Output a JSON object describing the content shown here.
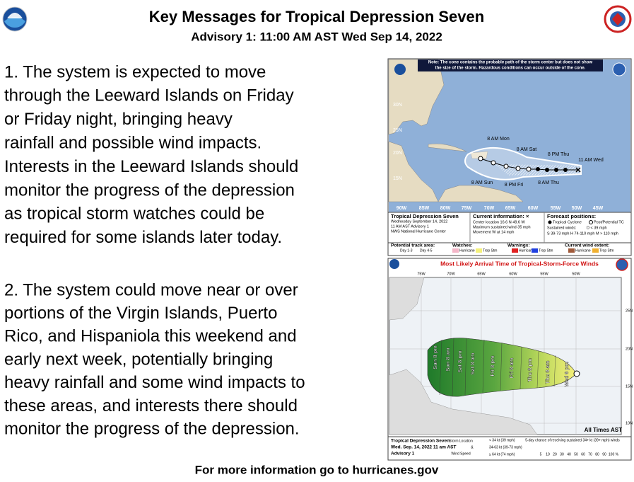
{
  "header": {
    "title": "Key Messages for Tropical Depression Seven",
    "subtitle": "Advisory 1:  11:00 AM AST Wed Sep 14, 2022"
  },
  "messages": [
    {
      "lines": [
        "1. The system is expected to move",
        "through the Leeward Islands on Friday",
        "or Friday night, bringing heavy",
        "rainfall and possible wind impacts.",
        "Interests in the Leeward Islands should",
        "monitor the progress of the depression",
        "as tropical storm watches could be",
        "required for some islands later today."
      ]
    },
    {
      "lines": [
        "2. The system could move near or over",
        "portions of the Virgin Islands, Puerto",
        "Rico, and Hispaniola this weekend and",
        "early next week, potentially bringing",
        "heavy rainfall and some wind impacts to",
        "these areas, and interests there should",
        "monitor the progress of the depression."
      ]
    }
  ],
  "footer": "For more information go to hurricanes.gov",
  "map1": {
    "note": [
      "Note: The cone contains the probable path of the storm center but does not show",
      "the size of the storm. Hazardous conditions can occur outside of the cone."
    ],
    "lat_labels": [
      "30N",
      "25N",
      "20N",
      "15N"
    ],
    "lon_labels": [
      "90W",
      "85W",
      "80W",
      "75W",
      "70W",
      "65W",
      "60W",
      "55W",
      "50W",
      "45W"
    ],
    "track_labels": [
      "8 AM Mon",
      "8 AM Sat",
      "8 PM Thu",
      "11 AM Wed",
      "8 AM Sun",
      "8 PM Fri",
      "8 AM Thu"
    ],
    "storm": [
      "Tropical Depression Seven",
      "Wednesday September 14, 2022",
      "11 AM AST Advisory 1",
      "NWS National Hurricane Center"
    ],
    "current_title": "Current information: ×",
    "current": [
      "Center location 16.6 N 49.6 W",
      "Maximum sustained wind 35 mph",
      "Movement W at 14 mph"
    ],
    "forecast_title": "Forecast positions:",
    "forecast": [
      "Tropical Cyclone",
      "Post/Potential TC",
      "Sustained winds:",
      "D < 39 mph",
      "S 39-73 mph  H 74-110 mph  M > 110 mph"
    ],
    "legend": [
      "Potential track area:",
      "Day 1-3",
      "Day 4-5",
      "Watches:",
      "Hurricane",
      "Trop Stm",
      "Warnings:",
      "Hurricane",
      "Trop Stm",
      "Current wind extent:",
      "Hurricane",
      "Trop Stm"
    ]
  },
  "map2": {
    "title": "Most Likely Arrival Time of Tropical-Storm-Force Winds",
    "lon_labels": [
      "75W",
      "70W",
      "65W",
      "60W",
      "55W",
      "50W"
    ],
    "lat_labels": [
      "25N",
      "20N",
      "15N",
      "10N"
    ],
    "arrivals": [
      "Sun 8 pm",
      "Sun 8 am",
      "Sat 8 pm",
      "Sat 8 am",
      "Fri 8 pm",
      "Fri 8 am",
      "Thu 8 pm",
      "Thu 8 am",
      "Wed 8 pm"
    ],
    "times_note": "All Times AST",
    "info": [
      "Tropical Depression Seven",
      "Wed. Sep. 14, 2022  11 am AST",
      "Advisory 1"
    ],
    "key": [
      "Storm Location",
      "&",
      "Wind Speed",
      "< 34 kt (39 mph)",
      "34-63 kt (39-73 mph)",
      "≥ 64 kt (74 mph)"
    ],
    "scale_title": "5-day chance of receiving sustained 34+ kt (39+ mph) winds",
    "scale": [
      "5",
      "10",
      "20",
      "30",
      "40",
      "50",
      "60",
      "70",
      "80",
      "90",
      "100 %"
    ]
  }
}
